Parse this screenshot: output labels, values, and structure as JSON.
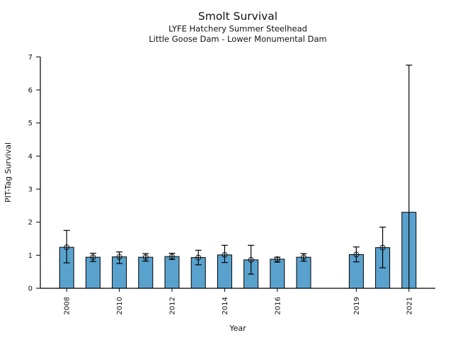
{
  "header": {
    "title": "Smolt Survival",
    "subtitle1": "LYFE Hatchery Summer Steelhead",
    "subtitle2": "Little Goose Dam - Lower Monumental Dam"
  },
  "chart_data": {
    "type": "bar",
    "title": "Smolt Survival",
    "subtitle_lines": [
      "LYFE Hatchery Summer Steelhead",
      "Little Goose Dam - Lower Monumental Dam"
    ],
    "xlabel": "Year",
    "ylabel": "PIT-Tag Survival",
    "xlim": [
      2007,
      2022
    ],
    "ylim": [
      0,
      7
    ],
    "yticks": [
      0,
      1,
      2,
      3,
      4,
      5,
      6,
      7
    ],
    "xticks": [
      "2008",
      "2010",
      "2012",
      "2014",
      "2016",
      "2019",
      "2021"
    ],
    "grid": false,
    "bar_color": "#5AA2CE",
    "bar_edge_color": "#000000",
    "error_color": "#000000",
    "marker_style": "open-circle",
    "points": [
      {
        "year": 2008,
        "value": 1.24,
        "err_low": 0.77,
        "err_high": 1.75,
        "marker": true
      },
      {
        "year": 2009,
        "value": 0.94,
        "err_low": 0.81,
        "err_high": 1.06,
        "marker": true
      },
      {
        "year": 2010,
        "value": 0.95,
        "err_low": 0.75,
        "err_high": 1.1,
        "marker": true
      },
      {
        "year": 2011,
        "value": 0.94,
        "err_low": 0.82,
        "err_high": 1.05,
        "marker": true
      },
      {
        "year": 2012,
        "value": 0.96,
        "err_low": 0.87,
        "err_high": 1.06,
        "marker": true
      },
      {
        "year": 2013,
        "value": 0.93,
        "err_low": 0.71,
        "err_high": 1.15,
        "marker": true
      },
      {
        "year": 2014,
        "value": 1.01,
        "err_low": 0.78,
        "err_high": 1.3,
        "marker": true
      },
      {
        "year": 2015,
        "value": 0.86,
        "err_low": 0.43,
        "err_high": 1.3,
        "marker": true
      },
      {
        "year": 2016,
        "value": 0.88,
        "err_low": 0.79,
        "err_high": 0.94,
        "marker": true
      },
      {
        "year": 2017,
        "value": 0.94,
        "err_low": 0.82,
        "err_high": 1.05,
        "marker": true
      },
      {
        "year": 2019,
        "value": 1.02,
        "err_low": 0.8,
        "err_high": 1.25,
        "marker": true
      },
      {
        "year": 2020,
        "value": 1.23,
        "err_low": 0.62,
        "err_high": 1.85,
        "marker": true
      },
      {
        "year": 2021,
        "value": 2.3,
        "err_low": 0.0,
        "err_high": 6.75,
        "marker": false
      }
    ]
  }
}
